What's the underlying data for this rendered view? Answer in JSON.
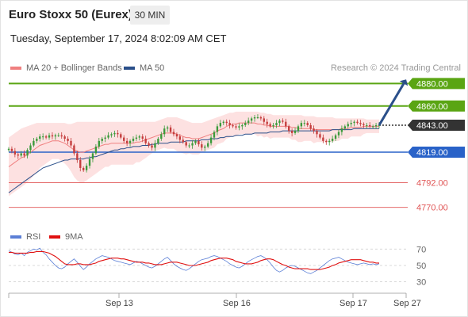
{
  "header": {
    "title": "Euro Stoxx 50 (Eurex)",
    "timeframe": "30 MIN",
    "datetime": "Tuesday, September 17, 2024 8:02:09 AM CET"
  },
  "legend": {
    "ma20_label": "MA 20 + Bollinger Bands",
    "ma50_label": "MA 50",
    "credit": "Research © 2024 Trading Central",
    "rsi_label": "RSI",
    "rsi_ma_label": "9MA"
  },
  "colors": {
    "bull": "#3a9a3a",
    "bear": "#c43c3c",
    "ma20": "#f08080",
    "ma50": "#2a4f8a",
    "band_fill": "#fde1e1",
    "target": "#5aa513",
    "pivot": "#2962c8",
    "support": "#e05555",
    "last": "#333333",
    "rsi": "#5b7fd6",
    "rsi_ma": "#e01010"
  },
  "chart_data": [
    {
      "type": "candlestick",
      "title": "Euro Stoxx 50 (Eurex)",
      "timeframe": "30 MIN",
      "ylim": [
        4755,
        4888
      ],
      "x_ticks": [
        "Sep 13",
        "Sep 16",
        "Sep 17",
        "Sep 27"
      ],
      "levels": [
        {
          "value": 4880.0,
          "label": "4880.00",
          "kind": "target"
        },
        {
          "value": 4860.0,
          "label": "4860.00",
          "kind": "target"
        },
        {
          "value": 4843.0,
          "label": "4843.00",
          "kind": "last"
        },
        {
          "value": 4819.0,
          "label": "4819.00",
          "kind": "pivot"
        },
        {
          "value": 4792.0,
          "label": "4792.00",
          "kind": "support"
        },
        {
          "value": 4770.0,
          "label": "4770.00",
          "kind": "support"
        }
      ],
      "projection": {
        "from": 4843,
        "to": 4880
      },
      "close": [
        4822,
        4820,
        4817,
        4816,
        4818,
        4816,
        4821,
        4825,
        4829,
        4831,
        4833,
        4833,
        4832,
        4834,
        4833,
        4834,
        4834,
        4833,
        4831,
        4829,
        4825,
        4818,
        4812,
        4805,
        4803,
        4807,
        4813,
        4818,
        4824,
        4829,
        4831,
        4832,
        4834,
        4835,
        4836,
        4835,
        4832,
        4829,
        4827,
        4829,
        4831,
        4832,
        4833,
        4831,
        4827,
        4825,
        4823,
        4827,
        4831,
        4835,
        4840,
        4841,
        4837,
        4835,
        4833,
        4830,
        4828,
        4825,
        4825,
        4827,
        4829,
        4826,
        4823,
        4824,
        4827,
        4832,
        4837,
        4842,
        4845,
        4846,
        4845,
        4843,
        4842,
        4841,
        4842,
        4843,
        4845,
        4847,
        4849,
        4850,
        4850,
        4849,
        4846,
        4844,
        4842,
        4843,
        4845,
        4847,
        4846,
        4842,
        4838,
        4836,
        4838,
        4842,
        4845,
        4845,
        4843,
        4840,
        4838,
        4835,
        4832,
        4829,
        4828,
        4829,
        4831,
        4834,
        4837,
        4840,
        4842,
        4844,
        4845,
        4846,
        4845,
        4844,
        4843,
        4843,
        4842,
        4842,
        4843,
        4843
      ],
      "ma20": [
        4806,
        4808,
        4810,
        4812,
        4814,
        4815,
        4817,
        4819,
        4821,
        4823,
        4825,
        4826,
        4827,
        4828,
        4829,
        4829,
        4829,
        4828,
        4827,
        4825,
        4823,
        4821,
        4820,
        4819,
        4819,
        4820,
        4821,
        4822,
        4823,
        4824,
        4825,
        4826,
        4826,
        4827,
        4827,
        4827,
        4827,
        4827,
        4827,
        4827,
        4827,
        4828,
        4828,
        4829,
        4830,
        4831,
        4832,
        4833,
        4834,
        4835,
        4836,
        4836,
        4836,
        4836,
        4835,
        4834,
        4833,
        4832,
        4832,
        4831,
        4831,
        4831,
        4832,
        4833,
        4834,
        4835,
        4836,
        4838,
        4839,
        4840,
        4842,
        4843,
        4844,
        4844,
        4845,
        4845,
        4845,
        4845,
        4845,
        4845,
        4844,
        4844,
        4843,
        4843,
        4842,
        4842,
        4842,
        4842,
        4842,
        4842,
        4842,
        4841,
        4841,
        4840,
        4840,
        4840,
        4840,
        4840,
        4839,
        4839,
        4839,
        4839,
        4839,
        4839,
        4839,
        4839,
        4839,
        4840,
        4840,
        4840,
        4841,
        4841,
        4841,
        4841,
        4842,
        4842,
        4842,
        4842,
        4842,
        4842
      ],
      "band_upper": [
        4832,
        4834,
        4836,
        4838,
        4840,
        4841,
        4842,
        4843,
        4844,
        4845,
        4845,
        4845,
        4845,
        4845,
        4845,
        4845,
        4845,
        4845,
        4845,
        4844,
        4844,
        4845,
        4846,
        4846,
        4846,
        4846,
        4846,
        4846,
        4846,
        4846,
        4846,
        4846,
        4846,
        4846,
        4846,
        4846,
        4846,
        4846,
        4846,
        4846,
        4846,
        4846,
        4846,
        4846,
        4846,
        4846,
        4846,
        4846,
        4847,
        4848,
        4849,
        4850,
        4850,
        4850,
        4850,
        4849,
        4848,
        4847,
        4846,
        4845,
        4845,
        4845,
        4845,
        4846,
        4847,
        4848,
        4849,
        4850,
        4851,
        4852,
        4853,
        4854,
        4854,
        4855,
        4855,
        4855,
        4855,
        4855,
        4855,
        4855,
        4855,
        4854,
        4854,
        4853,
        4853,
        4852,
        4852,
        4852,
        4852,
        4852,
        4852,
        4852,
        4852,
        4852,
        4852,
        4851,
        4851,
        4851,
        4851,
        4850,
        4850,
        4850,
        4850,
        4850,
        4850,
        4849,
        4849,
        4849,
        4849,
        4849,
        4849,
        4849,
        4849,
        4849,
        4849,
        4848,
        4848,
        4848,
        4848,
        4848
      ],
      "band_lower": [
        4780,
        4782,
        4784,
        4786,
        4788,
        4790,
        4792,
        4795,
        4798,
        4801,
        4805,
        4807,
        4809,
        4811,
        4813,
        4813,
        4813,
        4811,
        4809,
        4806,
        4802,
        4797,
        4794,
        4792,
        4792,
        4794,
        4796,
        4798,
        4800,
        4802,
        4804,
        4806,
        4806,
        4808,
        4808,
        4808,
        4808,
        4808,
        4808,
        4808,
        4808,
        4810,
        4810,
        4812,
        4814,
        4816,
        4818,
        4820,
        4821,
        4822,
        4823,
        4822,
        4822,
        4822,
        4820,
        4819,
        4818,
        4817,
        4818,
        4817,
        4817,
        4817,
        4819,
        4820,
        4821,
        4822,
        4823,
        4826,
        4827,
        4828,
        4831,
        4832,
        4834,
        4833,
        4835,
        4835,
        4835,
        4835,
        4835,
        4835,
        4833,
        4834,
        4832,
        4833,
        4831,
        4832,
        4832,
        4832,
        4832,
        4832,
        4832,
        4830,
        4830,
        4828,
        4828,
        4829,
        4829,
        4829,
        4827,
        4828,
        4828,
        4828,
        4828,
        4828,
        4828,
        4829,
        4829,
        4831,
        4831,
        4831,
        4833,
        4833,
        4833,
        4833,
        4835,
        4836,
        4836,
        4836,
        4836,
        4836
      ],
      "ma50": [
        4783,
        4785,
        4787,
        4789,
        4791,
        4793,
        4795,
        4797,
        4799,
        4801,
        4803,
        4805,
        4806,
        4807,
        4808,
        4809,
        4810,
        4811,
        4812,
        4812,
        4813,
        4813,
        4813,
        4813,
        4813,
        4814,
        4814,
        4815,
        4815,
        4816,
        4817,
        4818,
        4819,
        4820,
        4821,
        4821,
        4822,
        4822,
        4823,
        4823,
        4824,
        4824,
        4824,
        4825,
        4825,
        4825,
        4826,
        4826,
        4827,
        4827,
        4827,
        4827,
        4828,
        4828,
        4828,
        4828,
        4828,
        4829,
        4829,
        4829,
        4829,
        4829,
        4830,
        4830,
        4830,
        4831,
        4831,
        4831,
        4832,
        4832,
        4833,
        4833,
        4833,
        4834,
        4834,
        4834,
        4835,
        4835,
        4835,
        4836,
        4836,
        4836,
        4836,
        4836,
        4837,
        4837,
        4837,
        4837,
        4838,
        4838,
        4838,
        4838,
        4838,
        4838,
        4838,
        4838,
        4838,
        4838,
        4838,
        4838,
        4838,
        4838,
        4838,
        4838,
        4839,
        4839,
        4839,
        4839,
        4839,
        4839,
        4839,
        4840,
        4840,
        4840,
        4840,
        4840,
        4840,
        4840,
        4840,
        4840
      ]
    },
    {
      "type": "line",
      "title": "RSI",
      "ylim": [
        20,
        78
      ],
      "y_ticks": [
        70,
        50,
        30
      ],
      "series": [
        {
          "name": "RSI",
          "values": [
            68,
            66,
            64,
            63,
            65,
            62,
            66,
            68,
            70,
            69,
            71,
            66,
            63,
            58,
            54,
            50,
            47,
            46,
            48,
            52,
            55,
            58,
            54,
            49,
            45,
            48,
            52,
            55,
            58,
            60,
            62,
            61,
            60,
            58,
            56,
            55,
            54,
            53,
            52,
            51,
            53,
            55,
            54,
            52,
            50,
            48,
            47,
            49,
            52,
            55,
            58,
            60,
            56,
            52,
            49,
            47,
            45,
            44,
            46,
            49,
            52,
            55,
            57,
            58,
            59,
            61,
            62,
            61,
            59,
            57,
            55,
            52,
            50,
            48,
            47,
            49,
            52,
            55,
            57,
            59,
            61,
            62,
            60,
            57,
            53,
            48,
            44,
            42,
            44,
            47,
            49,
            50,
            49,
            47,
            45,
            43,
            41,
            40,
            42,
            44,
            47,
            50,
            53,
            56,
            58,
            59,
            60,
            58,
            56,
            54,
            53,
            52,
            51,
            52,
            53,
            52,
            51,
            52,
            51,
            52
          ]
        },
        {
          "name": "9MA",
          "values": [
            66,
            66,
            65,
            65,
            65,
            65,
            65,
            66,
            66,
            67,
            67,
            67,
            66,
            65,
            63,
            61,
            58,
            55,
            52,
            51,
            51,
            51,
            52,
            52,
            51,
            51,
            51,
            52,
            53,
            55,
            56,
            57,
            58,
            59,
            59,
            59,
            58,
            58,
            57,
            56,
            55,
            54,
            54,
            54,
            53,
            53,
            52,
            51,
            51,
            51,
            52,
            53,
            54,
            54,
            54,
            53,
            52,
            51,
            50,
            50,
            50,
            51,
            52,
            53,
            54,
            56,
            57,
            58,
            59,
            59,
            59,
            58,
            57,
            55,
            54,
            53,
            52,
            52,
            52,
            53,
            54,
            56,
            57,
            58,
            58,
            57,
            55,
            53,
            51,
            50,
            48,
            47,
            46,
            46,
            46,
            46,
            46,
            45,
            45,
            45,
            45,
            46,
            47,
            48,
            50,
            51,
            53,
            54,
            55,
            56,
            57,
            57,
            57,
            57,
            56,
            55,
            54,
            54,
            53,
            53
          ]
        }
      ]
    }
  ]
}
